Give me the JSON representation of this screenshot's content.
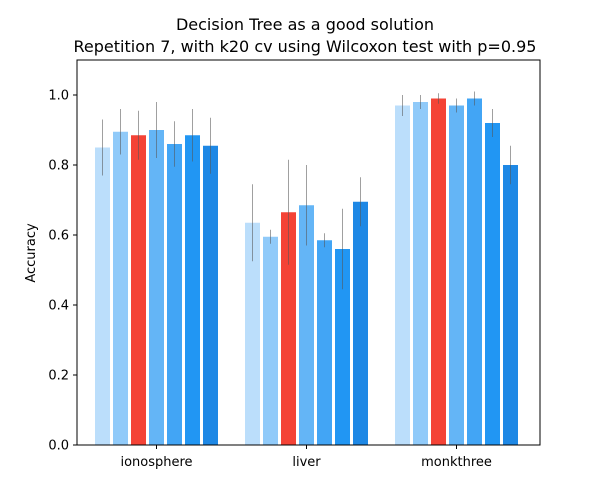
{
  "chart_data": {
    "type": "bar",
    "title": "Decision Tree as a good solution",
    "subtitle": "Repetition 7, with k20 cv using Wilcoxon test with p=0.95",
    "xlabel": "",
    "ylabel": "Accuracy",
    "ylim": [
      0,
      1.1
    ],
    "yticks": [
      "0.0",
      "0.2",
      "0.4",
      "0.6",
      "0.8",
      "1.0"
    ],
    "categories": [
      "ionosphere",
      "liver",
      "monkthree"
    ],
    "grid": false,
    "legend": "none",
    "bar_colors": [
      "#bbdefb",
      "#90caf9",
      "#f44336",
      "#64b5f6",
      "#42a5f5",
      "#2196f3",
      "#1e88e5"
    ],
    "series": [
      {
        "values": [
          0.85,
          0.635,
          0.97
        ],
        "errors": [
          0.08,
          0.11,
          0.03
        ]
      },
      {
        "values": [
          0.895,
          0.595,
          0.98
        ],
        "errors": [
          0.065,
          0.02,
          0.02
        ]
      },
      {
        "values": [
          0.885,
          0.665,
          0.99
        ],
        "errors": [
          0.07,
          0.15,
          0.015
        ]
      },
      {
        "values": [
          0.9,
          0.685,
          0.97
        ],
        "errors": [
          0.08,
          0.115,
          0.02
        ]
      },
      {
        "values": [
          0.86,
          0.585,
          0.99
        ],
        "errors": [
          0.065,
          0.02,
          0.02
        ]
      },
      {
        "values": [
          0.885,
          0.56,
          0.92
        ],
        "errors": [
          0.075,
          0.115,
          0.04
        ]
      },
      {
        "values": [
          0.855,
          0.695,
          0.8
        ],
        "errors": [
          0.08,
          0.07,
          0.055
        ]
      }
    ]
  }
}
